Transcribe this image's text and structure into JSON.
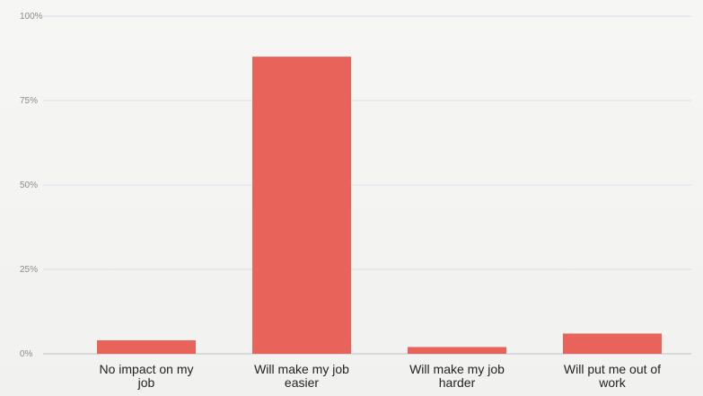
{
  "chart_data": {
    "type": "bar",
    "categories": [
      [
        "No impact on my",
        "job"
      ],
      [
        "Will make my job",
        "easier"
      ],
      [
        "Will make my job",
        "harder"
      ],
      [
        "Will put me out of",
        "work"
      ]
    ],
    "values": [
      4,
      88,
      2,
      6
    ],
    "ylim": [
      0,
      100
    ],
    "yticks": [
      "0%",
      "25%",
      "50%",
      "75%",
      "100%"
    ],
    "ytick_values": [
      0,
      25,
      50,
      75,
      100
    ],
    "grid": true,
    "bar_color": "#e8635a",
    "title": "",
    "xlabel": "",
    "ylabel": ""
  }
}
